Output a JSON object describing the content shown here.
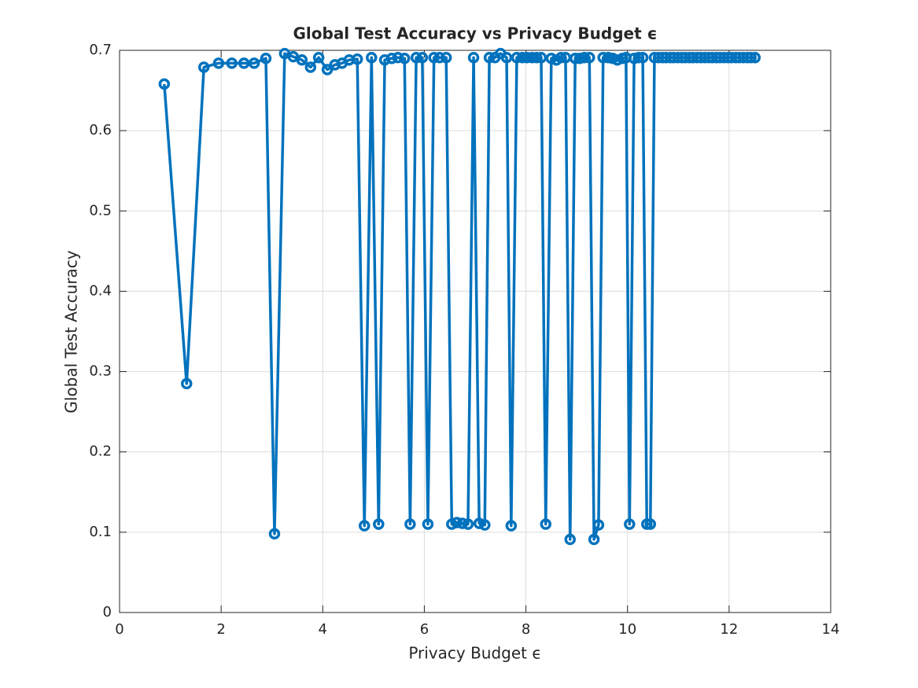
{
  "chart_data": {
    "type": "line",
    "title": "Global Test Accuracy vs Privacy Budget ϵ",
    "xlabel": "Privacy Budget ϵ",
    "ylabel": "Global Test Accuracy",
    "color": "#0072bd",
    "grid": true,
    "xlim": [
      0,
      14
    ],
    "xticks": [
      0,
      2,
      4,
      6,
      8,
      10,
      12,
      14
    ],
    "ylim": [
      0,
      0.7
    ],
    "yticks": [
      0,
      0.1,
      0.2,
      0.3,
      0.4,
      0.5,
      0.6,
      0.7
    ],
    "x": [
      0.88,
      1.32,
      1.66,
      1.95,
      2.21,
      2.45,
      2.65,
      2.88,
      3.05,
      3.25,
      3.42,
      3.59,
      3.76,
      3.92,
      4.09,
      4.24,
      4.38,
      4.52,
      4.68,
      4.82,
      4.96,
      5.1,
      5.22,
      5.36,
      5.48,
      5.61,
      5.72,
      5.84,
      5.96,
      6.07,
      6.19,
      6.3,
      6.43,
      6.54,
      6.64,
      6.75,
      6.86,
      6.97,
      7.08,
      7.19,
      7.28,
      7.39,
      7.5,
      7.62,
      7.71,
      7.82,
      7.93,
      8.02,
      8.12,
      8.21,
      8.3,
      8.39,
      8.5,
      8.6,
      8.69,
      8.78,
      8.87,
      8.97,
      9.06,
      9.15,
      9.25,
      9.34,
      9.43,
      9.52,
      9.62,
      9.71,
      9.8,
      9.9,
      9.97,
      10.04,
      10.13,
      10.22,
      10.3,
      10.38,
      10.45,
      10.53,
      10.61,
      10.69,
      10.76,
      10.84,
      10.91,
      10.99,
      11.07,
      11.14,
      11.22,
      11.29,
      11.37,
      11.44,
      11.52,
      11.6,
      11.67,
      11.75,
      11.82,
      11.9,
      11.98,
      12.05,
      12.13,
      12.2,
      12.28,
      12.36,
      12.43,
      12.51
    ],
    "values": [
      0.658,
      0.285,
      0.679,
      0.684,
      0.684,
      0.684,
      0.684,
      0.69,
      0.098,
      0.696,
      0.692,
      0.688,
      0.679,
      0.691,
      0.676,
      0.682,
      0.684,
      0.688,
      0.689,
      0.108,
      0.691,
      0.11,
      0.688,
      0.69,
      0.691,
      0.69,
      0.11,
      0.691,
      0.691,
      0.11,
      0.691,
      0.691,
      0.691,
      0.11,
      0.112,
      0.111,
      0.11,
      0.691,
      0.111,
      0.109,
      0.691,
      0.691,
      0.696,
      0.691,
      0.108,
      0.691,
      0.691,
      0.691,
      0.691,
      0.691,
      0.691,
      0.11,
      0.69,
      0.688,
      0.691,
      0.691,
      0.091,
      0.69,
      0.69,
      0.691,
      0.691,
      0.091,
      0.109,
      0.691,
      0.691,
      0.69,
      0.688,
      0.69,
      0.691,
      0.11,
      0.69,
      0.691,
      0.691,
      0.11,
      0.11,
      0.691,
      0.691,
      0.691,
      0.691,
      0.691,
      0.691,
      0.691,
      0.691,
      0.691,
      0.691,
      0.691,
      0.691,
      0.691,
      0.691,
      0.691,
      0.691,
      0.691,
      0.691,
      0.691,
      0.691,
      0.691,
      0.691,
      0.691,
      0.691,
      0.691,
      0.691,
      0.691
    ]
  }
}
